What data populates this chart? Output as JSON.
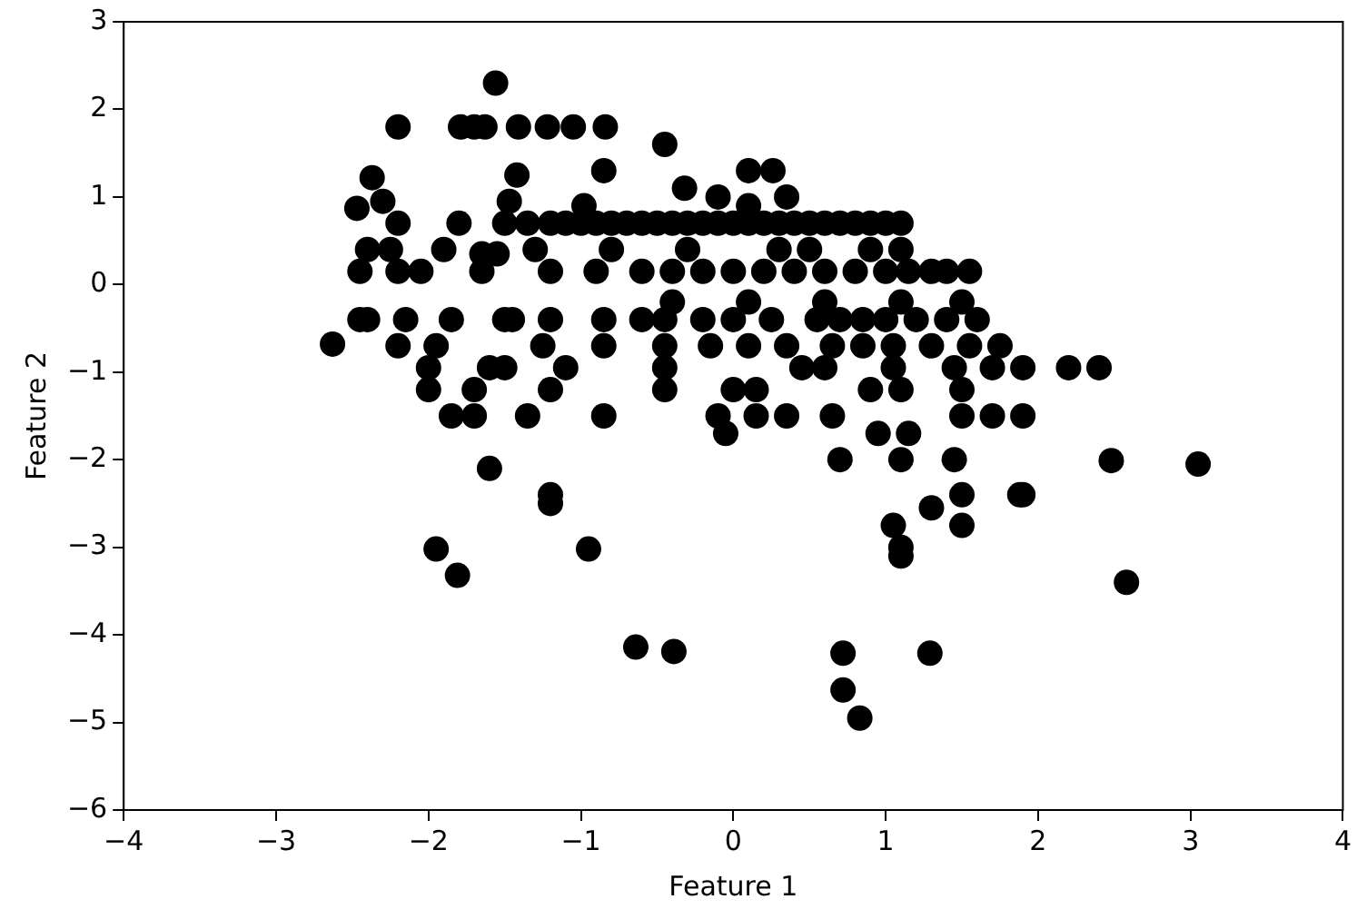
{
  "chart_data": {
    "type": "scatter",
    "xlabel": "Feature 1",
    "ylabel": "Feature 2",
    "xlim": [
      -4,
      4
    ],
    "ylim": [
      -6,
      3
    ],
    "xticks": [
      {
        "value": -4,
        "label": "−4"
      },
      {
        "value": -3,
        "label": "−3"
      },
      {
        "value": -2,
        "label": "−2"
      },
      {
        "value": -1,
        "label": "−1"
      },
      0,
      1,
      2,
      3,
      4
    ],
    "yticks": [
      {
        "value": -6,
        "label": "−6"
      },
      {
        "value": -5,
        "label": "−5"
      },
      {
        "value": -4,
        "label": "−4"
      },
      {
        "value": -3,
        "label": "−3"
      },
      {
        "value": -2,
        "label": "−2"
      },
      {
        "value": -1,
        "label": "−1"
      },
      0,
      1,
      2,
      3
    ],
    "grid": false,
    "marker": "circle",
    "series": [
      {
        "color": "#000000",
        "x": [
          -2.63,
          -1.56,
          -1.95,
          -1.81,
          -0.95,
          -0.64,
          -0.39,
          0.72,
          1.29,
          0.72,
          0.83,
          2.48,
          3.05,
          2.58,
          1.88,
          -2.2,
          -1.79,
          -1.7,
          -1.63,
          -1.41,
          -1.22,
          -1.05,
          -0.84,
          -0.45,
          -2.37,
          -1.42,
          -0.85,
          0.1,
          0.26,
          0.35,
          -2.47,
          -2.3,
          -1.47,
          -0.98,
          -0.32,
          -0.1,
          0.1,
          -2.2,
          -1.8,
          -1.5,
          -1.35,
          -1.2,
          -1.1,
          -1.0,
          -0.9,
          -0.8,
          -0.7,
          -0.6,
          -0.5,
          -0.4,
          -0.3,
          -0.2,
          -0.1,
          0,
          0.1,
          0.2,
          0.3,
          0.4,
          0.5,
          0.6,
          0.7,
          0.8,
          0.9,
          1.0,
          1.1,
          -2.45,
          -2.2,
          -2.05,
          -1.65,
          -1.2,
          -0.9,
          -0.6,
          -0.4,
          -0.2,
          0.0,
          0.2,
          0.4,
          0.6,
          0.8,
          1.0,
          1.15,
          1.3,
          1.4,
          1.55,
          -2.4,
          -2.25,
          -1.9,
          -1.3,
          -0.8,
          -0.3,
          0.3,
          0.5,
          0.9,
          1.1,
          -1.65,
          -1.55,
          -2.45,
          -2.4,
          -2.15,
          -1.85,
          -1.5,
          -1.45,
          -1.2,
          -0.85,
          -0.6,
          -0.45,
          -0.2,
          0,
          0.25,
          0.55,
          0.7,
          0.85,
          1.0,
          1.2,
          1.4,
          1.6,
          -0.4,
          0.1,
          0.6,
          1.1,
          1.5,
          -2.2,
          -1.95,
          -1.25,
          -0.85,
          -0.45,
          -0.15,
          0.1,
          0.35,
          0.65,
          0.85,
          1.05,
          1.3,
          1.55,
          1.75,
          -2.0,
          -1.6,
          -1.5,
          -1.1,
          -0.45,
          0.45,
          0.6,
          1.05,
          1.45,
          1.7,
          1.9,
          2.2,
          2.4,
          -2.0,
          -1.7,
          -1.2,
          -0.45,
          0,
          0.15,
          0.9,
          1.1,
          1.5,
          -1.85,
          -1.7,
          -1.35,
          -0.85,
          -0.1,
          0.15,
          0.35,
          0.65,
          1.5,
          1.7,
          1.9,
          -0.05,
          0.95,
          1.15,
          0.7,
          1.1,
          1.45,
          -1.6,
          -1.2,
          -1.2,
          1.5,
          1.9,
          1.05,
          1.5,
          1.1,
          1.1,
          1.3
        ],
        "values": [
          -0.68,
          2.3,
          -3.02,
          -3.32,
          -3.02,
          -4.14,
          -4.19,
          -4.21,
          -4.21,
          -4.63,
          -4.95,
          -2.01,
          -2.05,
          -3.4,
          -2.4,
          1.8,
          1.8,
          1.8,
          1.8,
          1.8,
          1.8,
          1.8,
          1.8,
          1.6,
          1.22,
          1.25,
          1.3,
          1.3,
          1.3,
          1.0,
          0.87,
          0.95,
          0.95,
          0.9,
          1.1,
          1.0,
          0.9,
          0.7,
          0.7,
          0.7,
          0.7,
          0.7,
          0.7,
          0.7,
          0.7,
          0.7,
          0.7,
          0.7,
          0.7,
          0.7,
          0.7,
          0.7,
          0.7,
          0.7,
          0.7,
          0.7,
          0.7,
          0.7,
          0.7,
          0.7,
          0.7,
          0.7,
          0.7,
          0.7,
          0.7,
          0.15,
          0.15,
          0.15,
          0.15,
          0.15,
          0.15,
          0.15,
          0.15,
          0.15,
          0.15,
          0.15,
          0.15,
          0.15,
          0.15,
          0.15,
          0.15,
          0.15,
          0.15,
          0.15,
          0.4,
          0.4,
          0.4,
          0.4,
          0.4,
          0.4,
          0.4,
          0.4,
          0.4,
          0.4,
          0.35,
          0.35,
          -0.4,
          -0.4,
          -0.4,
          -0.4,
          -0.4,
          -0.4,
          -0.4,
          -0.4,
          -0.4,
          -0.4,
          -0.4,
          -0.4,
          -0.4,
          -0.4,
          -0.4,
          -0.4,
          -0.4,
          -0.4,
          -0.4,
          -0.4,
          -0.2,
          -0.2,
          -0.2,
          -0.2,
          -0.2,
          -0.7,
          -0.7,
          -0.7,
          -0.7,
          -0.7,
          -0.7,
          -0.7,
          -0.7,
          -0.7,
          -0.7,
          -0.7,
          -0.7,
          -0.7,
          -0.7,
          -0.95,
          -0.95,
          -0.95,
          -0.95,
          -0.95,
          -0.95,
          -0.95,
          -0.95,
          -0.95,
          -0.95,
          -0.95,
          -0.95,
          -0.95,
          -1.2,
          -1.2,
          -1.2,
          -1.2,
          -1.2,
          -1.2,
          -1.2,
          -1.2,
          -1.2,
          -1.5,
          -1.5,
          -1.5,
          -1.5,
          -1.5,
          -1.5,
          -1.5,
          -1.5,
          -1.5,
          -1.5,
          -1.5,
          -1.7,
          -1.7,
          -1.7,
          -2.0,
          -2.0,
          -2.0,
          -2.1,
          -2.4,
          -2.5,
          -2.4,
          -2.4,
          -2.75,
          -2.75,
          -3.0,
          -3.1,
          -2.55
        ]
      }
    ]
  }
}
